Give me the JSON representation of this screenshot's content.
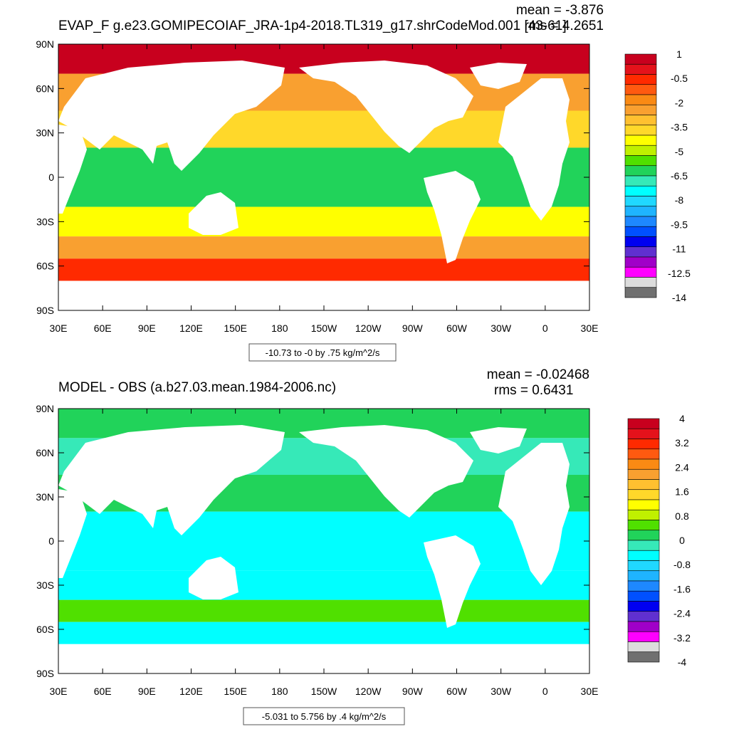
{
  "chart_data": [
    {
      "type": "heatmap",
      "title": "EVAP_F g.e23.GOMIPECOIAF_JRA-1p4-2018.TL319_g17.shrCodeMod.001 [43-61]",
      "stats": {
        "mean": "mean = -3.876",
        "rms": "rms = 4.2651"
      },
      "contour_note": "-10.73 to -0 by .75 kg/m^2/s",
      "x_ticks": [
        "30E",
        "60E",
        "90E",
        "120E",
        "150E",
        "180",
        "150W",
        "120W",
        "90W",
        "60W",
        "30W",
        "0",
        "30E"
      ],
      "y_ticks": [
        "90N",
        "60N",
        "30N",
        "0",
        "30S",
        "60S",
        "90S"
      ],
      "colorbar": {
        "labels": [
          "1",
          "-0.5",
          "-2",
          "-3.5",
          "-5",
          "-6.5",
          "-8",
          "-9.5",
          "-11",
          "-12.5",
          "-14"
        ],
        "colors": [
          "#c8001e",
          "#e4121b",
          "#ff2a00",
          "#ff5a10",
          "#fa8a14",
          "#f9a030",
          "#ffc030",
          "#ffd82a",
          "#ffff00",
          "#c0f000",
          "#50e000",
          "#21d35a",
          "#36e9b8",
          "#00ffff",
          "#20d8ff",
          "#1fb4ff",
          "#1e88ff",
          "#0050ff",
          "#0000f0",
          "#6030d0",
          "#a000c8",
          "#ff00ff",
          "#dcdcdc",
          "#707070"
        ]
      },
      "bands": [
        {
          "lat": [
            90,
            70
          ],
          "value": 0.5
        },
        {
          "lat": [
            70,
            45
          ],
          "value": -2.5
        },
        {
          "lat": [
            45,
            20
          ],
          "value": -3.8
        },
        {
          "lat": [
            20,
            -20
          ],
          "value": -6.2
        },
        {
          "lat": [
            -20,
            -40
          ],
          "value": -4.5
        },
        {
          "lat": [
            -40,
            -55
          ],
          "value": -2.5
        },
        {
          "lat": [
            -55,
            -70
          ],
          "value": -0.5
        }
      ]
    },
    {
      "type": "heatmap",
      "title": "MODEL - OBS (a.b27.03.mean.1984-2006.nc)",
      "stats": {
        "mean": "mean = -0.02468",
        "rms": "rms = 0.6431"
      },
      "contour_note": "-5.031 to 5.756 by .4 kg/m^2/s",
      "x_ticks": [
        "30E",
        "60E",
        "90E",
        "120E",
        "150E",
        "180",
        "150W",
        "120W",
        "90W",
        "60W",
        "30W",
        "0",
        "30E"
      ],
      "y_ticks": [
        "90N",
        "60N",
        "30N",
        "0",
        "30S",
        "60S",
        "90S"
      ],
      "colorbar": {
        "labels": [
          "4",
          "3.2",
          "2.4",
          "1.6",
          "0.8",
          "0",
          "-0.8",
          "-1.6",
          "-2.4",
          "-3.2",
          "-4"
        ],
        "colors": [
          "#c8001e",
          "#e4121b",
          "#ff2a00",
          "#ff5a10",
          "#fa8a14",
          "#f9a030",
          "#ffc030",
          "#ffd82a",
          "#ffff00",
          "#c0f000",
          "#50e000",
          "#21d35a",
          "#36e9b8",
          "#00ffff",
          "#20d8ff",
          "#1fb4ff",
          "#1e88ff",
          "#0050ff",
          "#0000f0",
          "#6030d0",
          "#a000c8",
          "#ff00ff",
          "#dcdcdc",
          "#707070"
        ]
      },
      "bands": [
        {
          "lat": [
            90,
            70
          ],
          "value": 0.1
        },
        {
          "lat": [
            70,
            45
          ],
          "value": -0.2
        },
        {
          "lat": [
            45,
            20
          ],
          "value": 0.3
        },
        {
          "lat": [
            20,
            -20
          ],
          "value": -0.6
        },
        {
          "lat": [
            -20,
            -40
          ],
          "value": -0.4
        },
        {
          "lat": [
            -40,
            -55
          ],
          "value": 0.4
        },
        {
          "lat": [
            -55,
            -70
          ],
          "value": -0.5
        }
      ]
    }
  ]
}
